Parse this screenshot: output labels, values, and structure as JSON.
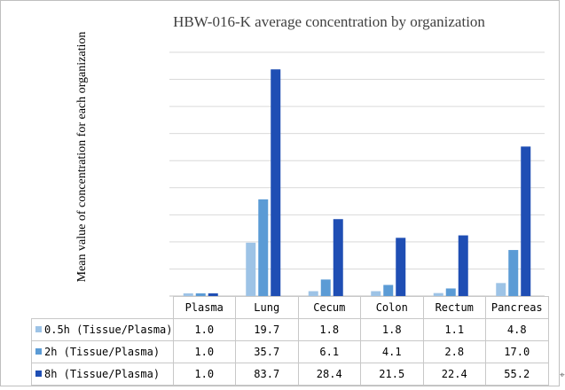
{
  "chart_data": {
    "type": "bar",
    "title": "HBW-016-K average concentration by organization",
    "ylabel": "Mean value of concentration for each organization",
    "xlabel": "",
    "categories": [
      "Plasma",
      "Lung",
      "Cecum",
      "Colon",
      "Rectum",
      "Pancreas"
    ],
    "series": [
      {
        "name": "0.5h (Tissue/Plasma)",
        "values": [
          1.0,
          19.7,
          1.8,
          1.8,
          1.1,
          4.8
        ],
        "color": "#9dc3e6"
      },
      {
        "name": "2h (Tissue/Plasma)",
        "values": [
          1.0,
          35.7,
          6.1,
          4.1,
          2.8,
          17.0
        ],
        "color": "#5b9bd5"
      },
      {
        "name": "8h (Tissue/Plasma)",
        "values": [
          1.0,
          83.7,
          28.4,
          21.5,
          22.4,
          55.2
        ],
        "color": "#1f4eb4"
      }
    ],
    "value_labels": [
      [
        "1.0",
        "19.7",
        "1.8",
        "1.8",
        "1.1",
        "4.8"
      ],
      [
        "1.0",
        "35.7",
        "6.1",
        "4.1",
        "2.8",
        "17.0"
      ],
      [
        "1.0",
        "83.7",
        "28.4",
        "21.5",
        "22.4",
        "55.2"
      ]
    ],
    "ylim": [
      0,
      90
    ],
    "gridline_step": 10,
    "grid": true,
    "tick_labels_shown": false,
    "legend": "data-table"
  }
}
